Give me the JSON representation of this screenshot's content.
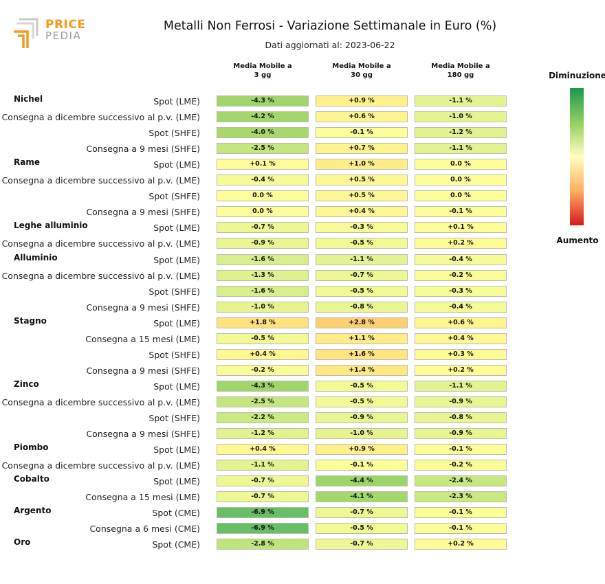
{
  "logo": {
    "word1": "PRICE",
    "word2": "PEDIA",
    "icon": "pricepedia-logo-icon",
    "color": "#f29a1f"
  },
  "header": {
    "title": "Metalli Non Ferrosi - Variazione Settimanale in Euro (%)",
    "subtitle": "Dati aggiornati al: 2023-06-22"
  },
  "columns": [
    "Media Mobile a\n3 gg",
    "Media Mobile a\n30 gg",
    "Media Mobile a\n180 gg"
  ],
  "legend": {
    "top_label": "Diminuzione",
    "bottom_label": "Aumento",
    "colors": [
      "#1a9850",
      "#91cf60",
      "#ffffbf",
      "#fdae61",
      "#d7191c"
    ]
  },
  "chart_data": {
    "type": "heatmap",
    "title": "Metalli Non Ferrosi - Variazione Settimanale in Euro (%)",
    "unit": "%",
    "columns": [
      "Media Mobile a 3 gg",
      "Media Mobile a 30 gg",
      "Media Mobile a 180 gg"
    ],
    "color_scale": {
      "low_label": "Diminuzione",
      "high_label": "Aumento"
    },
    "groups": [
      {
        "name": "Nichel",
        "rows": [
          {
            "label": "Spot (LME)",
            "text": [
              "-4.3 %",
              "+0.9 %",
              "-1.1 %"
            ],
            "values": [
              -4.3,
              0.9,
              -1.1
            ]
          },
          {
            "label": "Consegna a dicembre successivo al p.v. (LME)",
            "text": [
              "-4.2 %",
              "+0.6 %",
              "-1.0 %"
            ],
            "values": [
              -4.2,
              0.6,
              -1.0
            ]
          },
          {
            "label": "Spot (SHFE)",
            "text": [
              "-4.0 %",
              "-0.1 %",
              "-1.2 %"
            ],
            "values": [
              -4.0,
              -0.1,
              -1.2
            ]
          },
          {
            "label": "Consegna a 9 mesi (SHFE)",
            "text": [
              "-2.5 %",
              "+0.7 %",
              "-1.1 %"
            ],
            "values": [
              -2.5,
              0.7,
              -1.1
            ]
          }
        ]
      },
      {
        "name": "Rame",
        "rows": [
          {
            "label": "Spot (LME)",
            "text": [
              "+0.1 %",
              "+1.0 %",
              "0.0 %"
            ],
            "values": [
              0.1,
              1.0,
              0.0
            ]
          },
          {
            "label": "Consegna a dicembre successivo al p.v. (LME)",
            "text": [
              "-0.4 %",
              "+0.5 %",
              "0.0 %"
            ],
            "values": [
              -0.4,
              0.5,
              0.0
            ]
          },
          {
            "label": "Spot (SHFE)",
            "text": [
              "0.0 %",
              "+0.5 %",
              "0.0 %"
            ],
            "values": [
              0.0,
              0.5,
              0.0
            ]
          },
          {
            "label": "Consegna a 9 mesi (SHFE)",
            "text": [
              "0.0 %",
              "+0.4 %",
              "-0.1 %"
            ],
            "values": [
              0.0,
              0.4,
              -0.1
            ]
          }
        ]
      },
      {
        "name": "Leghe alluminio",
        "rows": [
          {
            "label": "Spot (LME)",
            "text": [
              "-0.7 %",
              "-0.3 %",
              "+0.1 %"
            ],
            "values": [
              -0.7,
              -0.3,
              0.1
            ]
          },
          {
            "label": "Consegna a dicembre successivo al p.v. (LME)",
            "text": [
              "-0.9 %",
              "-0.5 %",
              "+0.2 %"
            ],
            "values": [
              -0.9,
              -0.5,
              0.2
            ]
          }
        ]
      },
      {
        "name": "Alluminio",
        "rows": [
          {
            "label": "Spot (LME)",
            "text": [
              "-1.6 %",
              "-1.1 %",
              "-0.4 %"
            ],
            "values": [
              -1.6,
              -1.1,
              -0.4
            ]
          },
          {
            "label": "Consegna a dicembre successivo al p.v. (LME)",
            "text": [
              "-1.3 %",
              "-0.7 %",
              "-0.2 %"
            ],
            "values": [
              -1.3,
              -0.7,
              -0.2
            ]
          },
          {
            "label": "Spot (SHFE)",
            "text": [
              "-1.6 %",
              "-0.5 %",
              "-0.3 %"
            ],
            "values": [
              -1.6,
              -0.5,
              -0.3
            ]
          },
          {
            "label": "Consegna a 9 mesi (SHFE)",
            "text": [
              "-1.0 %",
              "-0.8 %",
              "-0.4 %"
            ],
            "values": [
              -1.0,
              -0.8,
              -0.4
            ]
          }
        ]
      },
      {
        "name": "Stagno",
        "rows": [
          {
            "label": "Spot (LME)",
            "text": [
              "+1.8 %",
              "+2.8 %",
              "+0.6 %"
            ],
            "values": [
              1.8,
              2.8,
              0.6
            ]
          },
          {
            "label": "Consegna a 15 mesi (LME)",
            "text": [
              "-0.5 %",
              "+1.1 %",
              "+0.4 %"
            ],
            "values": [
              -0.5,
              1.1,
              0.4
            ]
          },
          {
            "label": "Spot (SHFE)",
            "text": [
              "+0.4 %",
              "+1.6 %",
              "+0.3 %"
            ],
            "values": [
              0.4,
              1.6,
              0.3
            ]
          },
          {
            "label": "Consegna a 9 mesi (SHFE)",
            "text": [
              "-0.2 %",
              "+1.4 %",
              "+0.2 %"
            ],
            "values": [
              -0.2,
              1.4,
              0.2
            ]
          }
        ]
      },
      {
        "name": "Zinco",
        "rows": [
          {
            "label": "Spot (LME)",
            "text": [
              "-4.3 %",
              "-0.5 %",
              "-1.1 %"
            ],
            "values": [
              -4.3,
              -0.5,
              -1.1
            ]
          },
          {
            "label": "Consegna a dicembre successivo al p.v. (LME)",
            "text": [
              "-2.5 %",
              "-0.5 %",
              "-0.9 %"
            ],
            "values": [
              -2.5,
              -0.5,
              -0.9
            ]
          },
          {
            "label": "Spot (SHFE)",
            "text": [
              "-2.2 %",
              "-0.9 %",
              "-0.8 %"
            ],
            "values": [
              -2.2,
              -0.9,
              -0.8
            ]
          },
          {
            "label": "Consegna a 9 mesi (SHFE)",
            "text": [
              "-1.2 %",
              "-1.0 %",
              "-0.9 %"
            ],
            "values": [
              -1.2,
              -1.0,
              -0.9
            ]
          }
        ]
      },
      {
        "name": "Piombo",
        "rows": [
          {
            "label": "Spot (LME)",
            "text": [
              "+0.4 %",
              "+0.9 %",
              "-0.1 %"
            ],
            "values": [
              0.4,
              0.9,
              -0.1
            ]
          },
          {
            "label": "Consegna a dicembre successivo al p.v. (LME)",
            "text": [
              "-1.1 %",
              "-0.1 %",
              "-0.2 %"
            ],
            "values": [
              -1.1,
              -0.1,
              -0.2
            ]
          }
        ]
      },
      {
        "name": "Cobalto",
        "rows": [
          {
            "label": "Spot (LME)",
            "text": [
              "-0.7 %",
              "-4.4 %",
              "-2.4 %"
            ],
            "values": [
              -0.7,
              -4.4,
              -2.4
            ]
          },
          {
            "label": "Consegna a 15 mesi (LME)",
            "text": [
              "-0.7 %",
              "-4.1 %",
              "-2.3 %"
            ],
            "values": [
              -0.7,
              -4.1,
              -2.3
            ]
          }
        ]
      },
      {
        "name": "Argento",
        "rows": [
          {
            "label": "Spot (CME)",
            "text": [
              "-6.9 %",
              "-0.7 %",
              "-0.1 %"
            ],
            "values": [
              -6.9,
              -0.7,
              -0.1
            ]
          },
          {
            "label": "Consegna a 6 mesi (CME)",
            "text": [
              "-6.9 %",
              "-0.5 %",
              "-0.1 %"
            ],
            "values": [
              -6.9,
              -0.5,
              -0.1
            ]
          }
        ]
      },
      {
        "name": "Oro",
        "rows": [
          {
            "label": "Spot (CME)",
            "text": [
              "-2.8 %",
              "-0.7 %",
              "+0.2 %"
            ],
            "values": [
              -2.8,
              -0.7,
              0.2
            ]
          }
        ]
      }
    ]
  }
}
